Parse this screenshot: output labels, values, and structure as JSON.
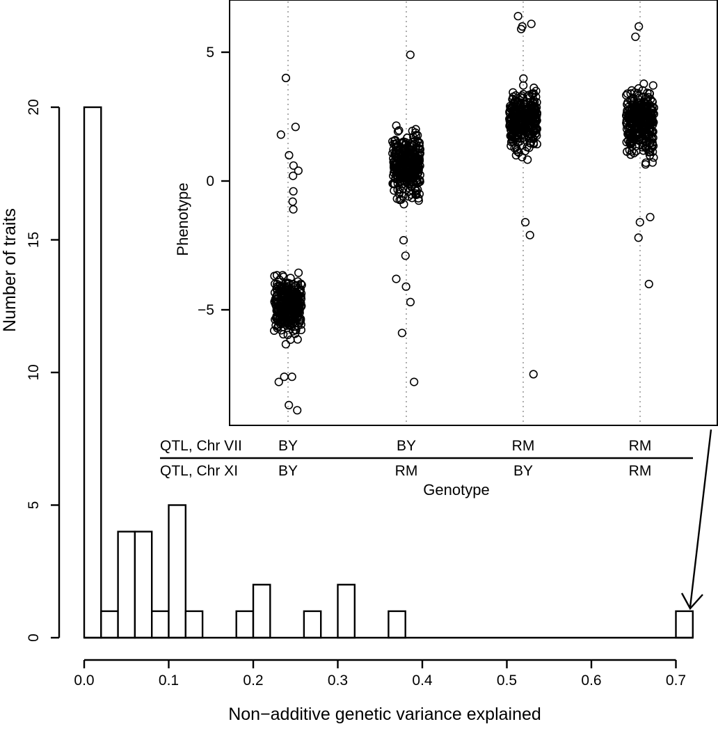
{
  "chart_data": [
    {
      "type": "bar",
      "xlabel": "Non−additive genetic variance explained",
      "ylabel": "Number of traits",
      "bin_width": 0.02,
      "bins": [
        {
          "start": 0.0,
          "value": 20
        },
        {
          "start": 0.02,
          "value": 1
        },
        {
          "start": 0.04,
          "value": 4
        },
        {
          "start": 0.06,
          "value": 4
        },
        {
          "start": 0.08,
          "value": 1
        },
        {
          "start": 0.1,
          "value": 5
        },
        {
          "start": 0.12,
          "value": 1
        },
        {
          "start": 0.18,
          "value": 1
        },
        {
          "start": 0.2,
          "value": 2
        },
        {
          "start": 0.26,
          "value": 1
        },
        {
          "start": 0.3,
          "value": 2
        },
        {
          "start": 0.36,
          "value": 1
        },
        {
          "start": 0.7,
          "value": 1
        }
      ],
      "x_ticks": [
        "0.0",
        "0.1",
        "0.2",
        "0.3",
        "0.4",
        "0.5",
        "0.6",
        "0.7"
      ],
      "y_ticks": [
        "0",
        "5",
        "10",
        "15",
        "20"
      ],
      "xlim": [
        0,
        0.72
      ],
      "ylim": [
        0,
        20
      ],
      "annotation": "arrow from inset to bin 0.70–0.72"
    },
    {
      "type": "scatter",
      "ylabel": "Phenotype",
      "xlabel": "Genotype",
      "y_ticks": [
        "−5",
        "0",
        "5"
      ],
      "ylim": [
        -9.3,
        6.9
      ],
      "row_labels": [
        "QTL, Chr VII",
        "QTL, Chr XI"
      ],
      "groups": [
        {
          "chr7": "BY",
          "chr11": "BY",
          "center": -4.8,
          "spread": 1.0,
          "outliers": [
            4.0,
            2.1,
            1.8,
            1.0,
            0.6,
            0.4,
            0.2,
            -0.4,
            -0.8,
            -1.1,
            -7.6,
            -7.6,
            -7.8,
            -8.7,
            -8.9
          ]
        },
        {
          "chr7": "BY",
          "chr11": "RM",
          "center": 0.6,
          "spread": 1.1,
          "outliers": [
            4.9,
            -2.3,
            -2.9,
            -3.8,
            -4.1,
            -4.7,
            -5.9,
            -7.8
          ]
        },
        {
          "chr7": "RM",
          "chr11": "BY",
          "center": 2.4,
          "spread": 1.1,
          "outliers": [
            6.4,
            6.1,
            6.0,
            5.9,
            -1.6,
            -2.1,
            -7.5
          ]
        },
        {
          "chr7": "RM",
          "chr11": "RM",
          "center": 2.3,
          "spread": 1.1,
          "outliers": [
            6.0,
            5.6,
            -1.4,
            -1.6,
            -2.2,
            -4.0
          ]
        }
      ]
    }
  ]
}
